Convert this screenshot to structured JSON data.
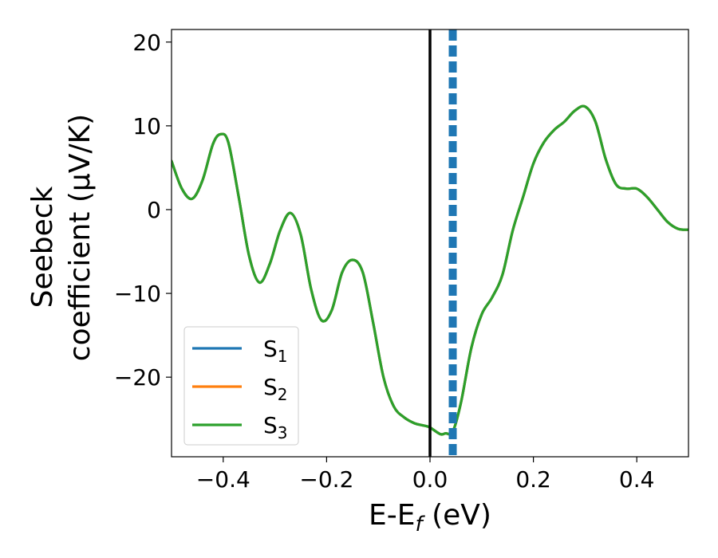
{
  "chart_data": {
    "type": "line",
    "xlabel": "E-E",
    "xlabel_sub": "f",
    "xlabel_unit": " (eV)",
    "ylabel_line1": "Seebeck",
    "ylabel_line2": "coefficient  (μV/K)",
    "xlim": [
      -0.5,
      0.5
    ],
    "ylim": [
      -29.5,
      21.5
    ],
    "xticks": [
      -0.4,
      -0.2,
      0.0,
      0.2,
      0.4
    ],
    "xtick_labels": [
      "−0.4",
      "−0.2",
      "0.0",
      "0.2",
      "0.4"
    ],
    "yticks": [
      -20,
      -10,
      0,
      10,
      20
    ],
    "ytick_labels": [
      "−20",
      "−10",
      "0",
      "10",
      "20"
    ],
    "grid": false,
    "legend_position": "lower-left",
    "vlines": [
      {
        "x": 0.0,
        "style": "solid",
        "color": "#000000"
      },
      {
        "x": 0.044,
        "style": "dashed",
        "color": "#1f77b4"
      }
    ],
    "series": [
      {
        "name": "S",
        "sub": "1",
        "color": "#1f77b4",
        "x": [
          -0.5,
          -0.48,
          -0.46,
          -0.44,
          -0.42,
          -0.405,
          -0.39,
          -0.37,
          -0.35,
          -0.33,
          -0.31,
          -0.29,
          -0.27,
          -0.25,
          -0.23,
          -0.21,
          -0.19,
          -0.17,
          -0.15,
          -0.13,
          -0.11,
          -0.09,
          -0.07,
          -0.05,
          -0.03,
          -0.01,
          0.0,
          0.02,
          0.03,
          0.044,
          0.06,
          0.08,
          0.1,
          0.12,
          0.14,
          0.16,
          0.18,
          0.2,
          0.22,
          0.24,
          0.26,
          0.28,
          0.3,
          0.32,
          0.34,
          0.36,
          0.38,
          0.4,
          0.42,
          0.44,
          0.46,
          0.48,
          0.5
        ],
        "y": [
          5.8,
          2.5,
          1.3,
          3.5,
          7.8,
          9.0,
          8.0,
          1.5,
          -5.5,
          -8.7,
          -6.5,
          -2.5,
          -0.4,
          -3.0,
          -9.5,
          -13.2,
          -12.0,
          -7.5,
          -6.0,
          -7.5,
          -13.5,
          -20.0,
          -23.5,
          -24.8,
          -25.5,
          -25.8,
          -26.0,
          -26.8,
          -26.7,
          -26.5,
          -23.0,
          -16.5,
          -12.5,
          -10.5,
          -7.8,
          -2.5,
          1.5,
          5.5,
          8.0,
          9.5,
          10.5,
          11.8,
          12.3,
          10.5,
          6.0,
          3.0,
          2.5,
          2.5,
          1.5,
          0.0,
          -1.5,
          -2.3,
          -2.4
        ]
      },
      {
        "name": "S",
        "sub": "2",
        "color": "#ff7f0e",
        "x": [
          -0.5,
          -0.48,
          -0.46,
          -0.44,
          -0.42,
          -0.405,
          -0.39,
          -0.37,
          -0.35,
          -0.33,
          -0.31,
          -0.29,
          -0.27,
          -0.25,
          -0.23,
          -0.21,
          -0.19,
          -0.17,
          -0.15,
          -0.13,
          -0.11,
          -0.09,
          -0.07,
          -0.05,
          -0.03,
          -0.01,
          0.0,
          0.02,
          0.03,
          0.044,
          0.06,
          0.08,
          0.1,
          0.12,
          0.14,
          0.16,
          0.18,
          0.2,
          0.22,
          0.24,
          0.26,
          0.28,
          0.3,
          0.32,
          0.34,
          0.36,
          0.38,
          0.4,
          0.42,
          0.44,
          0.46,
          0.48,
          0.5
        ],
        "y": [
          5.8,
          2.5,
          1.3,
          3.5,
          7.8,
          9.0,
          8.0,
          1.5,
          -5.5,
          -8.7,
          -6.5,
          -2.5,
          -0.4,
          -3.0,
          -9.5,
          -13.2,
          -12.0,
          -7.5,
          -6.0,
          -7.5,
          -13.5,
          -20.0,
          -23.5,
          -24.8,
          -25.5,
          -25.8,
          -26.0,
          -26.8,
          -26.7,
          -26.5,
          -23.0,
          -16.5,
          -12.5,
          -10.5,
          -7.8,
          -2.5,
          1.5,
          5.5,
          8.0,
          9.5,
          10.5,
          11.8,
          12.3,
          10.5,
          6.0,
          3.0,
          2.5,
          2.5,
          1.5,
          0.0,
          -1.5,
          -2.3,
          -2.4
        ]
      },
      {
        "name": "S",
        "sub": "3",
        "color": "#2ca02c",
        "x": [
          -0.5,
          -0.48,
          -0.46,
          -0.44,
          -0.42,
          -0.405,
          -0.39,
          -0.37,
          -0.35,
          -0.33,
          -0.31,
          -0.29,
          -0.27,
          -0.25,
          -0.23,
          -0.21,
          -0.19,
          -0.17,
          -0.15,
          -0.13,
          -0.11,
          -0.09,
          -0.07,
          -0.05,
          -0.03,
          -0.01,
          0.0,
          0.02,
          0.03,
          0.044,
          0.06,
          0.08,
          0.1,
          0.12,
          0.14,
          0.16,
          0.18,
          0.2,
          0.22,
          0.24,
          0.26,
          0.28,
          0.3,
          0.32,
          0.34,
          0.36,
          0.38,
          0.4,
          0.42,
          0.44,
          0.46,
          0.48,
          0.5
        ],
        "y": [
          5.8,
          2.5,
          1.3,
          3.5,
          7.8,
          9.0,
          8.0,
          1.5,
          -5.5,
          -8.7,
          -6.5,
          -2.5,
          -0.4,
          -3.0,
          -9.5,
          -13.2,
          -12.0,
          -7.5,
          -6.0,
          -7.5,
          -13.5,
          -20.0,
          -23.5,
          -24.8,
          -25.5,
          -25.8,
          -26.0,
          -26.8,
          -26.7,
          -26.5,
          -23.0,
          -16.5,
          -12.5,
          -10.5,
          -7.8,
          -2.5,
          1.5,
          5.5,
          8.0,
          9.5,
          10.5,
          11.8,
          12.3,
          10.5,
          6.0,
          3.0,
          2.5,
          2.5,
          1.5,
          0.0,
          -1.5,
          -2.3,
          -2.4
        ]
      }
    ]
  }
}
